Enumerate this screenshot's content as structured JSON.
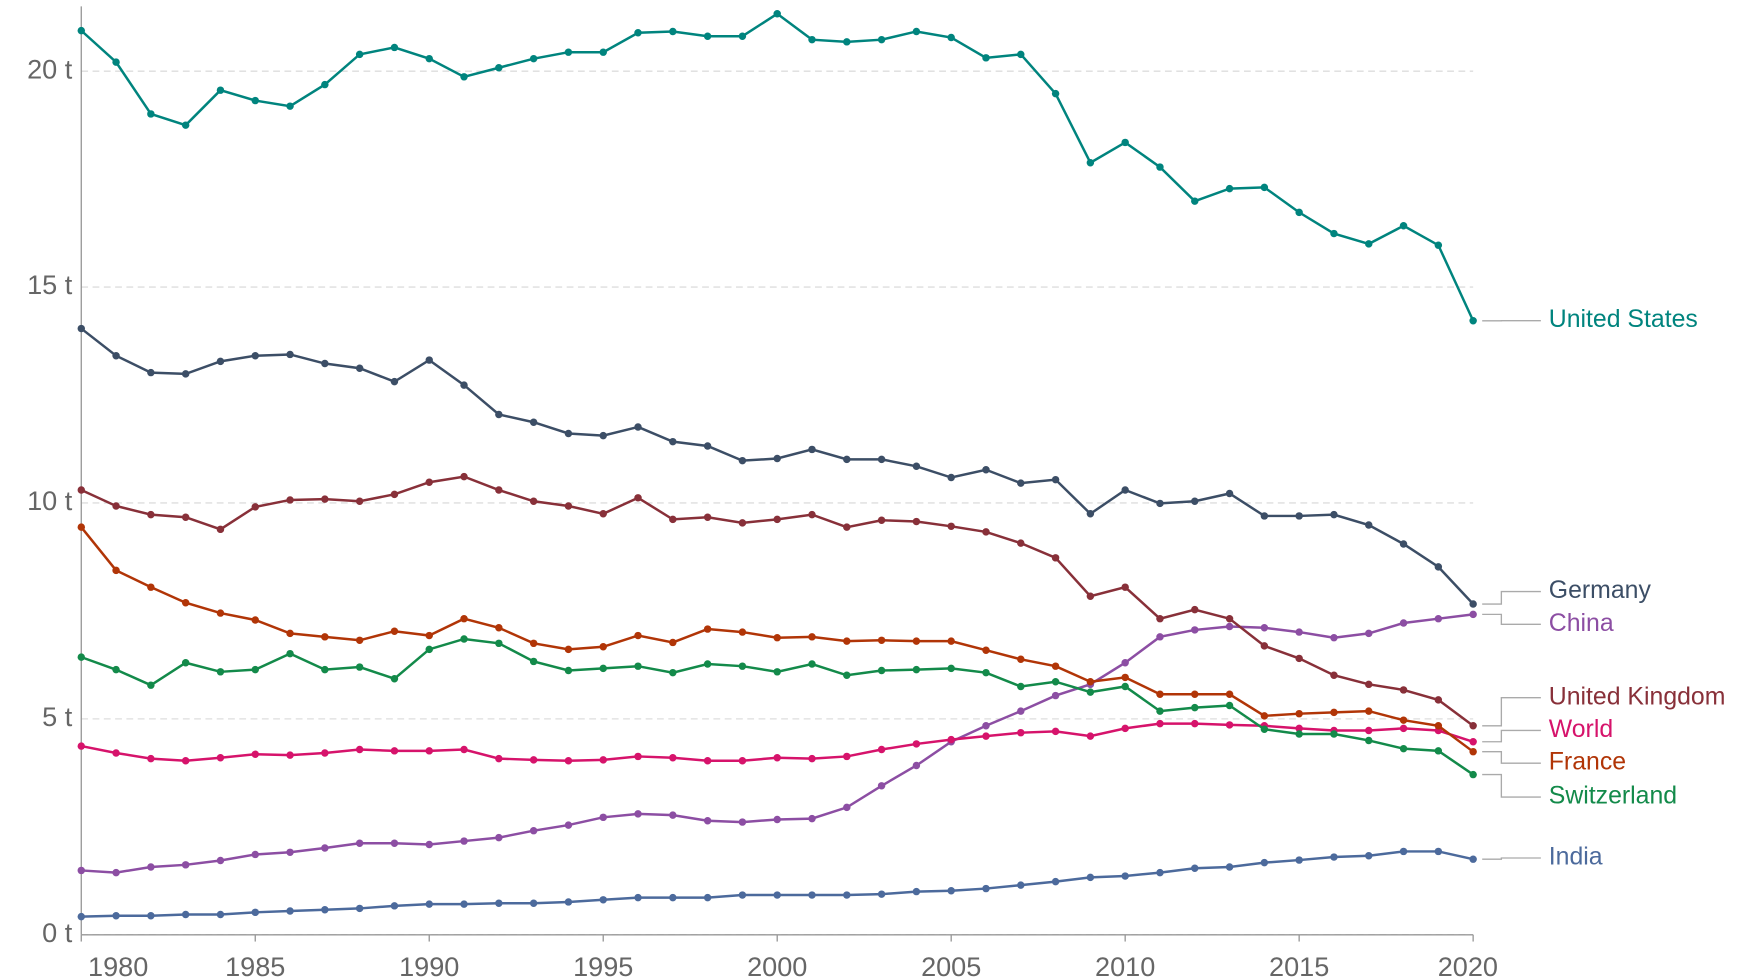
{
  "chart_data": {
    "type": "line",
    "x": [
      1980,
      1981,
      1982,
      1983,
      1984,
      1985,
      1986,
      1987,
      1988,
      1989,
      1990,
      1991,
      1992,
      1993,
      1994,
      1995,
      1996,
      1997,
      1998,
      1999,
      2000,
      2001,
      2002,
      2003,
      2004,
      2005,
      2006,
      2007,
      2008,
      2009,
      2010,
      2011,
      2012,
      2013,
      2014,
      2015,
      2016,
      2017,
      2018,
      2019,
      2020
    ],
    "xlim": [
      1980,
      2020
    ],
    "xticks": [
      1980,
      1985,
      1990,
      1995,
      2000,
      2005,
      2010,
      2015,
      2020
    ],
    "ylim": [
      0,
      21.5
    ],
    "yticks": [
      {
        "value": 0,
        "label": "0 t"
      },
      {
        "value": 5,
        "label": "5 t"
      },
      {
        "value": 10,
        "label": "10 t"
      },
      {
        "value": 15,
        "label": "15 t"
      },
      {
        "value": 20,
        "label": "20 t"
      }
    ],
    "grid": true,
    "series": [
      {
        "name": "United States",
        "color": "#00847e",
        "values": [
          20.94,
          20.21,
          19.01,
          18.75,
          19.56,
          19.32,
          19.19,
          19.69,
          20.39,
          20.55,
          20.29,
          19.87,
          20.08,
          20.29,
          20.44,
          20.44,
          20.89,
          20.92,
          20.81,
          20.81,
          21.33,
          20.73,
          20.68,
          20.73,
          20.92,
          20.78,
          20.31,
          20.39,
          19.48,
          17.88,
          18.35,
          17.78,
          16.99,
          17.28,
          17.31,
          16.73,
          16.24,
          16.0,
          16.42,
          15.97,
          14.22
        ]
      },
      {
        "name": "Germany",
        "color": "#3c4e66",
        "values": [
          14.04,
          13.41,
          13.02,
          12.99,
          13.28,
          13.41,
          13.44,
          13.23,
          13.12,
          12.81,
          13.31,
          12.73,
          12.05,
          11.87,
          11.61,
          11.56,
          11.76,
          11.42,
          11.32,
          10.98,
          11.03,
          11.24,
          11.01,
          11.01,
          10.85,
          10.59,
          10.77,
          10.46,
          10.54,
          9.75,
          10.3,
          9.99,
          10.04,
          10.22,
          9.7,
          9.7,
          9.73,
          9.49,
          9.05,
          8.52,
          7.66
        ]
      },
      {
        "name": "China",
        "color": "#8c4ea3",
        "values": [
          1.49,
          1.44,
          1.57,
          1.62,
          1.72,
          1.86,
          1.91,
          2.01,
          2.12,
          2.12,
          2.09,
          2.17,
          2.25,
          2.41,
          2.54,
          2.72,
          2.8,
          2.77,
          2.64,
          2.61,
          2.67,
          2.69,
          2.95,
          3.45,
          3.92,
          4.47,
          4.84,
          5.18,
          5.54,
          5.8,
          6.3,
          6.9,
          7.06,
          7.14,
          7.11,
          7.01,
          6.88,
          6.98,
          7.22,
          7.32,
          7.42
        ]
      },
      {
        "name": "United Kingdom",
        "color": "#883039",
        "values": [
          10.3,
          9.93,
          9.73,
          9.67,
          9.39,
          9.91,
          10.07,
          10.09,
          10.04,
          10.2,
          10.48,
          10.61,
          10.3,
          10.04,
          9.93,
          9.75,
          10.12,
          9.62,
          9.67,
          9.54,
          9.62,
          9.73,
          9.44,
          9.6,
          9.57,
          9.46,
          9.33,
          9.07,
          8.73,
          7.84,
          8.05,
          7.32,
          7.53,
          7.32,
          6.69,
          6.4,
          6.01,
          5.8,
          5.67,
          5.44,
          4.84
        ]
      },
      {
        "name": "World",
        "color": "#d6136b",
        "values": [
          4.37,
          4.21,
          4.08,
          4.03,
          4.1,
          4.18,
          4.16,
          4.21,
          4.29,
          4.26,
          4.26,
          4.29,
          4.08,
          4.05,
          4.03,
          4.05,
          4.13,
          4.1,
          4.03,
          4.03,
          4.1,
          4.08,
          4.13,
          4.29,
          4.42,
          4.52,
          4.6,
          4.68,
          4.71,
          4.6,
          4.78,
          4.89,
          4.89,
          4.86,
          4.84,
          4.78,
          4.73,
          4.73,
          4.78,
          4.73,
          4.47
        ]
      },
      {
        "name": "France",
        "color": "#b13507",
        "values": [
          9.44,
          8.44,
          8.05,
          7.69,
          7.45,
          7.29,
          6.98,
          6.9,
          6.82,
          7.03,
          6.93,
          7.32,
          7.11,
          6.75,
          6.61,
          6.67,
          6.93,
          6.77,
          7.08,
          7.01,
          6.88,
          6.9,
          6.8,
          6.82,
          6.8,
          6.8,
          6.59,
          6.38,
          6.22,
          5.86,
          5.96,
          5.57,
          5.57,
          5.57,
          5.07,
          5.12,
          5.15,
          5.18,
          4.97,
          4.84,
          4.24
        ]
      },
      {
        "name": "Switzerland",
        "color": "#138a4a",
        "values": [
          6.43,
          6.14,
          5.78,
          6.3,
          6.09,
          6.14,
          6.51,
          6.14,
          6.2,
          5.93,
          6.61,
          6.85,
          6.75,
          6.33,
          6.12,
          6.17,
          6.22,
          6.07,
          6.27,
          6.22,
          6.09,
          6.27,
          6.01,
          6.12,
          6.14,
          6.17,
          6.07,
          5.75,
          5.86,
          5.62,
          5.75,
          5.18,
          5.26,
          5.31,
          4.76,
          4.65,
          4.65,
          4.5,
          4.31,
          4.26,
          3.71
        ]
      },
      {
        "name": "India",
        "color": "#4c6a9c",
        "values": [
          0.42,
          0.44,
          0.44,
          0.47,
          0.47,
          0.52,
          0.55,
          0.58,
          0.61,
          0.67,
          0.71,
          0.71,
          0.73,
          0.73,
          0.76,
          0.81,
          0.86,
          0.86,
          0.86,
          0.92,
          0.92,
          0.92,
          0.92,
          0.94,
          1.0,
          1.02,
          1.07,
          1.15,
          1.23,
          1.33,
          1.36,
          1.44,
          1.54,
          1.57,
          1.67,
          1.73,
          1.8,
          1.83,
          1.93,
          1.93,
          1.75
        ]
      }
    ]
  }
}
